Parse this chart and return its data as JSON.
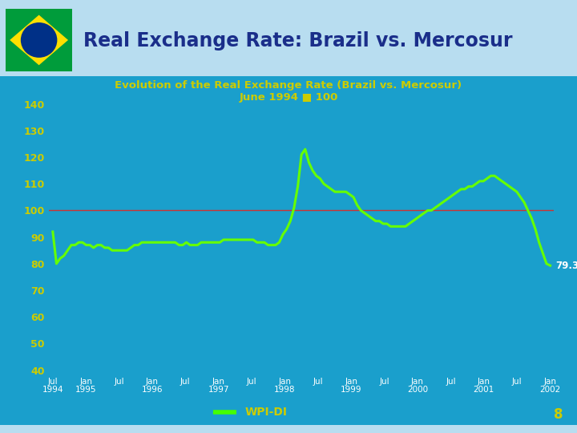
{
  "title_main": "Real Exchange Rate: Brazil vs. Mercosur",
  "subtitle1": "Evolution of the Real Exchange Rate (Brazil vs. Mercosur)",
  "subtitle2": "June 1994 ■ 100",
  "bg_color_light": "#b8ddf0",
  "bg_color_chart": "#1a9fcc",
  "line_color": "#66ff00",
  "ref_line_color": "#cc3333",
  "ref_line_value": 100,
  "title_color": "#1a2e8a",
  "subtitle_color": "#cccc00",
  "ytick_color": "#cccc00",
  "xtick_color": "#ffffff",
  "last_value_label": "79.3",
  "last_value_color": "#ffffff",
  "legend_label": "WPI-DI",
  "legend_color": "#44ff00",
  "page_number": "8",
  "page_color": "#cccc00",
  "ylim": [
    40,
    140
  ],
  "yticks": [
    40,
    50,
    60,
    70,
    80,
    90,
    100,
    110,
    120,
    130,
    140
  ],
  "flag_green": "#009c3b",
  "flag_yellow": "#fedf00",
  "flag_blue": "#003087",
  "upper_labels": [
    "Jul",
    "Jan",
    "Jul",
    "Jan",
    "Jul",
    "Jan",
    "Jul",
    "Jan",
    "Jul",
    "Jan",
    "Jul",
    "Jan",
    "Jul",
    "Jan",
    "Jul",
    "Jan"
  ],
  "lower_labels": [
    "1994",
    "1995",
    "",
    "1996",
    "",
    "1997",
    "",
    "1998",
    "",
    "1999",
    "",
    "2000",
    "",
    "2001",
    "",
    "2002"
  ],
  "data_y": [
    92,
    80,
    82,
    83,
    85,
    87,
    87,
    88,
    88,
    87,
    87,
    86,
    87,
    87,
    86,
    86,
    85,
    85,
    85,
    85,
    85,
    86,
    87,
    87,
    88,
    88,
    88,
    88,
    88,
    88,
    88,
    88,
    88,
    88,
    87,
    87,
    88,
    87,
    87,
    87,
    88,
    88,
    88,
    88,
    88,
    88,
    89,
    89,
    89,
    89,
    89,
    89,
    89,
    89,
    89,
    88,
    88,
    88,
    87,
    87,
    87,
    88,
    91,
    93,
    96,
    101,
    109,
    121,
    123,
    118,
    115,
    113,
    112,
    110,
    109,
    108,
    107,
    107,
    107,
    107,
    106,
    105,
    102,
    100,
    99,
    98,
    97,
    96,
    96,
    95,
    95,
    94,
    94,
    94,
    94,
    94,
    95,
    96,
    97,
    98,
    99,
    100,
    100,
    101,
    102,
    103,
    104,
    105,
    106,
    107,
    108,
    108,
    109,
    109,
    110,
    111,
    111,
    112,
    113,
    113,
    112,
    111,
    110,
    109,
    108,
    107,
    105,
    103,
    100,
    97,
    93,
    88,
    84,
    80,
    79.3
  ]
}
